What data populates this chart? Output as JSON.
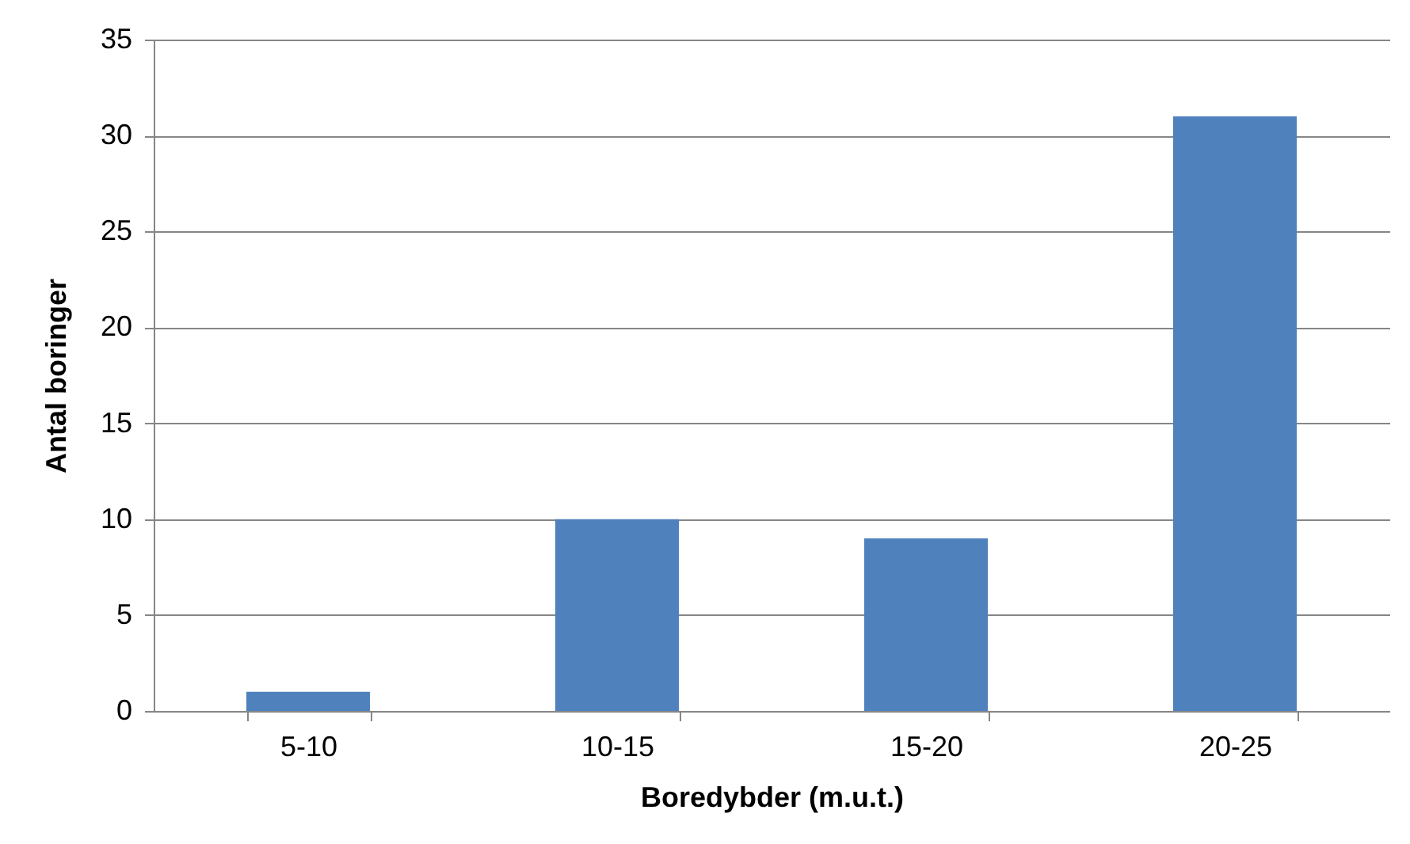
{
  "chart_data": {
    "type": "bar",
    "xlabel": "Boredybder (m.u.t.)",
    "ylabel": "Antal boringer",
    "categories": [
      "5-10",
      "10-15",
      "15-20",
      "20-25"
    ],
    "values": [
      1,
      10,
      9,
      31
    ],
    "color": "#4f81bd",
    "ylim": [
      0,
      35
    ],
    "yticks": [
      0,
      5,
      10,
      15,
      20,
      25,
      30,
      35
    ],
    "grid": "y"
  }
}
